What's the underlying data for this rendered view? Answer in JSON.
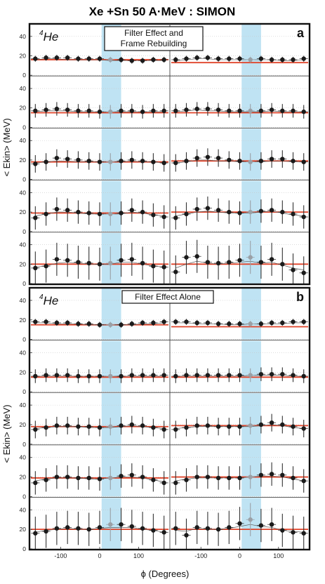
{
  "title": "Xe +Sn 50 A·MeV : SIMON",
  "y_axis_label": "< Ekin> (MeV)",
  "x_axis_label": "ϕ (Degrees)",
  "colors": {
    "reference_line": "#e0442a",
    "shade": "#bfe3f3",
    "marker": "#1a1a1a",
    "marker_shaded": "#9aa0a6"
  },
  "chart_data": {
    "type": "scatter",
    "y_tick_labels": [
      "0",
      "20",
      "40"
    ],
    "x_tick_labels": [
      "-100",
      "0",
      "100"
    ],
    "panels": [
      {
        "letter": "a",
        "particle": "4He",
        "note_lines": [
          "Filter Effect and",
          "Frame Rebuilding"
        ],
        "ylim": [
          0,
          50
        ],
        "rows": [
          {
            "left": {
              "ref": 16,
              "err": 3,
              "y": [
                17,
                18,
                18,
                18,
                17,
                17,
                17,
                16,
                16,
                15,
                15,
                16,
                16
              ],
              "y2": [
                16,
                17,
                17,
                16,
                16,
                16,
                16,
                15,
                15,
                15,
                15,
                15,
                15
              ]
            },
            "right": {
              "ref": 13,
              "err": 3,
              "y": [
                16,
                17,
                18,
                18,
                17,
                17,
                17,
                16,
                17,
                16,
                16,
                16,
                17
              ],
              "y2": [
                15,
                16,
                17,
                17,
                16,
                16,
                16,
                16,
                16,
                16,
                15,
                15,
                16
              ]
            }
          },
          {
            "left": {
              "ref": 15,
              "err": 7,
              "y": [
                17,
                18,
                19,
                18,
                17,
                17,
                16,
                16,
                17,
                17,
                16,
                17,
                17
              ],
              "y2": [
                16,
                17,
                17,
                17,
                16,
                16,
                16,
                16,
                16,
                16,
                16,
                16,
                16
              ]
            },
            "right": {
              "ref": 15,
              "err": 7,
              "y": [
                17,
                18,
                19,
                19,
                18,
                17,
                17,
                17,
                17,
                18,
                17,
                17,
                16
              ],
              "y2": [
                16,
                17,
                18,
                17,
                17,
                16,
                16,
                16,
                16,
                17,
                16,
                16,
                16
              ]
            }
          },
          {
            "left": {
              "ref": 18,
              "err": 9,
              "y": [
                16,
                18,
                22,
                21,
                20,
                19,
                18,
                18,
                19,
                20,
                19,
                18,
                17
              ],
              "y2": [
                17,
                18,
                19,
                19,
                18,
                18,
                18,
                18,
                18,
                19,
                18,
                18,
                17
              ]
            },
            "right": {
              "ref": 19,
              "err": 9,
              "y": [
                17,
                19,
                22,
                23,
                22,
                20,
                19,
                18,
                19,
                21,
                21,
                19,
                18
              ],
              "y2": [
                17,
                18,
                20,
                20,
                19,
                19,
                18,
                18,
                18,
                19,
                19,
                18,
                18
              ]
            }
          },
          {
            "left": {
              "ref": 19,
              "err": 12,
              "y": [
                14,
                18,
                23,
                22,
                20,
                19,
                18,
                18,
                19,
                22,
                20,
                17,
                15
              ],
              "y2": [
                16,
                18,
                20,
                20,
                19,
                18,
                18,
                18,
                18,
                20,
                19,
                17,
                16
              ]
            },
            "right": {
              "ref": 20,
              "err": 12,
              "y": [
                14,
                18,
                23,
                24,
                22,
                20,
                19,
                20,
                21,
                22,
                20,
                18,
                15
              ],
              "y2": [
                16,
                18,
                20,
                21,
                20,
                19,
                19,
                19,
                20,
                21,
                19,
                17,
                16
              ]
            }
          },
          {
            "left": {
              "ref": 20,
              "err": 17,
              "y": [
                16,
                18,
                25,
                24,
                22,
                21,
                20,
                21,
                24,
                25,
                21,
                18,
                17
              ],
              "y2": [
                17,
                18,
                21,
                22,
                21,
                20,
                20,
                20,
                22,
                22,
                20,
                18,
                17
              ]
            },
            "right": {
              "ref": 20,
              "err": 17,
              "y": [
                12,
                27,
                28,
                22,
                21,
                22,
                24,
                27,
                22,
                25,
                20,
                14,
                11
              ],
              "y2": [
                16,
                20,
                23,
                21,
                20,
                21,
                22,
                23,
                21,
                22,
                19,
                16,
                14
              ]
            }
          }
        ]
      },
      {
        "letter": "b",
        "particle": "4He",
        "note_lines": [
          "Filter Effect Alone"
        ],
        "ylim": [
          0,
          50
        ],
        "rows": [
          {
            "left": {
              "ref": 15,
              "err": 3,
              "y": [
                18,
                18,
                17,
                17,
                16,
                16,
                15,
                15,
                15,
                16,
                17,
                17,
                18
              ],
              "y2": [
                17,
                17,
                16,
                16,
                16,
                15,
                15,
                15,
                15,
                15,
                16,
                16,
                17
              ]
            },
            "right": {
              "ref": 13,
              "err": 3,
              "y": [
                18,
                18,
                17,
                17,
                16,
                16,
                16,
                16,
                16,
                17,
                17,
                18,
                18
              ],
              "y2": [
                17,
                17,
                16,
                16,
                16,
                15,
                15,
                16,
                16,
                16,
                16,
                17,
                17
              ]
            }
          },
          {
            "left": {
              "ref": 15,
              "err": 7,
              "y": [
                16,
                17,
                17,
                17,
                16,
                16,
                16,
                16,
                16,
                17,
                17,
                17,
                17
              ],
              "y2": [
                16,
                16,
                16,
                16,
                16,
                16,
                16,
                16,
                16,
                16,
                16,
                16,
                16
              ]
            },
            "right": {
              "ref": 15,
              "err": 7,
              "y": [
                16,
                17,
                17,
                17,
                17,
                17,
                17,
                17,
                18,
                18,
                18,
                17,
                16
              ],
              "y2": [
                16,
                16,
                16,
                16,
                16,
                16,
                16,
                17,
                17,
                17,
                17,
                16,
                16
              ]
            }
          },
          {
            "left": {
              "ref": 18,
              "err": 9,
              "y": [
                15,
                17,
                19,
                19,
                18,
                18,
                17,
                18,
                19,
                20,
                19,
                17,
                15
              ],
              "y2": [
                16,
                17,
                18,
                18,
                18,
                17,
                17,
                17,
                18,
                19,
                18,
                17,
                16
              ]
            },
            "right": {
              "ref": 19,
              "err": 9,
              "y": [
                15,
                17,
                19,
                19,
                18,
                18,
                18,
                19,
                20,
                22,
                20,
                18,
                16
              ],
              "y2": [
                16,
                17,
                18,
                18,
                18,
                18,
                18,
                18,
                19,
                20,
                19,
                17,
                16
              ]
            }
          },
          {
            "left": {
              "ref": 19,
              "err": 12,
              "y": [
                14,
                17,
                20,
                20,
                19,
                19,
                18,
                19,
                21,
                22,
                20,
                17,
                14
              ],
              "y2": [
                16,
                18,
                19,
                19,
                19,
                18,
                18,
                19,
                20,
                20,
                19,
                17,
                15
              ]
            },
            "right": {
              "ref": 20,
              "err": 12,
              "y": [
                14,
                17,
                20,
                20,
                19,
                19,
                19,
                20,
                22,
                23,
                22,
                19,
                16
              ],
              "y2": [
                16,
                18,
                19,
                19,
                19,
                19,
                19,
                20,
                21,
                21,
                20,
                18,
                16
              ]
            }
          },
          {
            "left": {
              "ref": 20,
              "err": 17,
              "y": [
                16,
                18,
                21,
                22,
                21,
                20,
                22,
                25,
                25,
                23,
                21,
                19,
                17
              ],
              "y2": [
                17,
                19,
                20,
                21,
                20,
                20,
                21,
                22,
                22,
                22,
                20,
                19,
                17
              ]
            },
            "right": {
              "ref": 20,
              "err": 17,
              "y": [
                21,
                14,
                22,
                21,
                20,
                22,
                26,
                30,
                24,
                25,
                19,
                17,
                16
              ],
              "y2": [
                19,
                18,
                21,
                20,
                20,
                21,
                23,
                25,
                23,
                22,
                19,
                18,
                17
              ]
            }
          }
        ]
      }
    ]
  }
}
